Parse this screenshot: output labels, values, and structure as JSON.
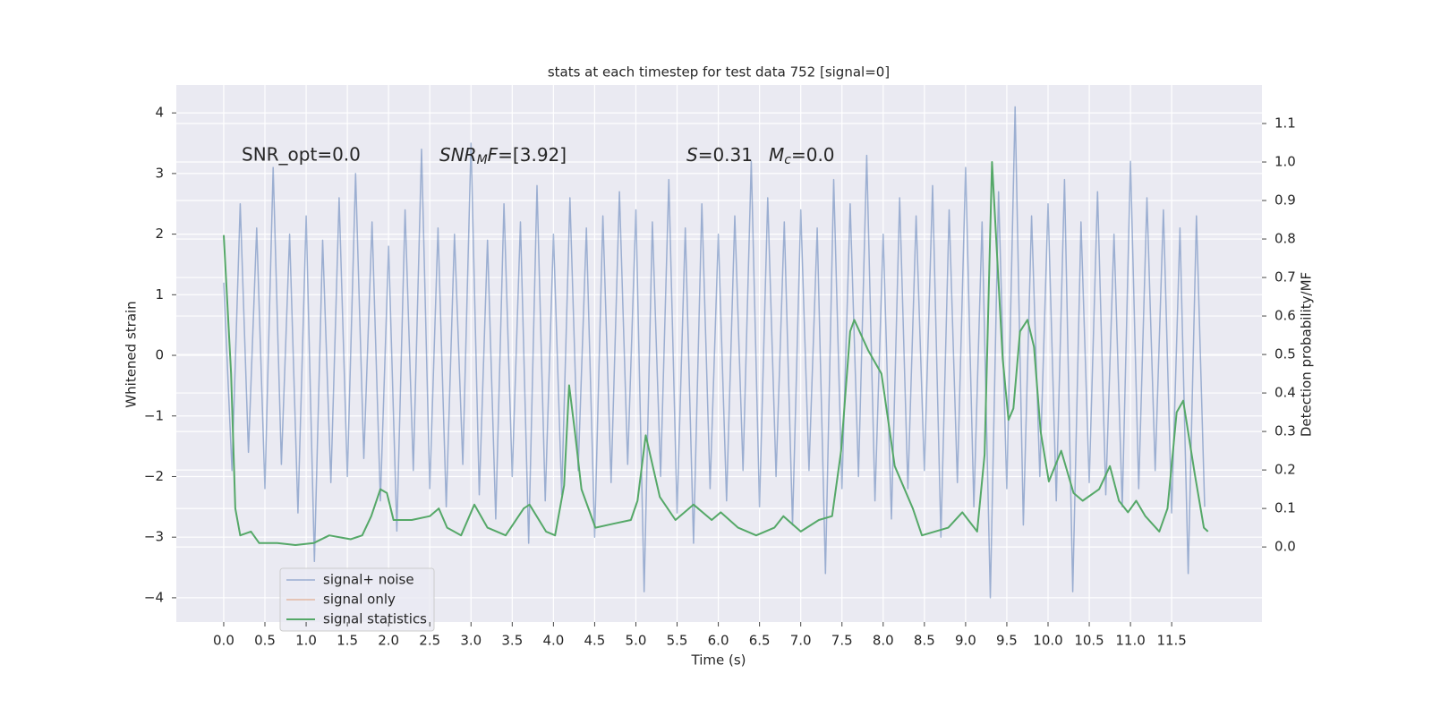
{
  "chart_data": {
    "type": "line",
    "title": "stats at each timestep for test data 752 [signal=0]",
    "xlabel": "Time (s)",
    "ylabel": "Whitened strain",
    "y2label": "Detection probability/MF",
    "annotations": {
      "snr_opt": "SNR_opt=0.0",
      "snr_mf": [
        "SNR",
        "M",
        "F",
        "=[3.92]"
      ],
      "s": [
        "S",
        "=0.31"
      ],
      "mc": [
        "M",
        "c",
        "=0.0"
      ]
    },
    "xlim": [
      -0.575,
      12.595
    ],
    "ylim": [
      -4.4,
      4.46
    ],
    "y2lim": [
      -0.195,
      1.2
    ],
    "xticks": [
      {
        "value": 0,
        "label": "0.0"
      },
      0.5,
      {
        "value": 1,
        "label": "1.0"
      },
      1.5,
      {
        "value": 2,
        "label": "2.0"
      },
      2.5,
      {
        "value": 3,
        "label": "3.0"
      },
      3.5,
      {
        "value": 4,
        "label": "4.0"
      },
      4.5,
      {
        "value": 5,
        "label": "5.0"
      },
      5.5,
      {
        "value": 6,
        "label": "6.0"
      },
      6.5,
      {
        "value": 7,
        "label": "7.0"
      },
      7.5,
      {
        "value": 8,
        "label": "8.0"
      },
      8.5,
      {
        "value": 9,
        "label": "9.0"
      },
      9.5,
      {
        "value": 10,
        "label": "10.0"
      },
      10.5,
      {
        "value": 11,
        "label": "11.0"
      },
      11.5
    ],
    "yticks": [
      {
        "value": -4,
        "label": "−4"
      },
      {
        "value": -3,
        "label": "−3"
      },
      {
        "value": -2,
        "label": "−2"
      },
      {
        "value": -1,
        "label": "−1"
      },
      0,
      1,
      2,
      3,
      4
    ],
    "y2ticks": [
      {
        "value": 0,
        "label": "0.0"
      },
      0.1,
      0.2,
      0.3,
      0.4,
      0.5,
      0.6,
      0.7,
      0.8,
      0.9,
      {
        "value": 1,
        "label": "1.0"
      },
      1.1
    ],
    "grid": true,
    "legend": "lower left",
    "series": [
      {
        "name": "signal+ noise",
        "color": "#4c72b0",
        "x": [
          0.0,
          0.1,
          0.2,
          0.3,
          0.4,
          0.5,
          0.6,
          0.7,
          0.8,
          0.9,
          1.0,
          1.1,
          1.2,
          1.3,
          1.4,
          1.5,
          1.6,
          1.7,
          1.8,
          1.9,
          2.0,
          2.1,
          2.2,
          2.3,
          2.4,
          2.5,
          2.6,
          2.7,
          2.8,
          2.9,
          3.0,
          3.1,
          3.2,
          3.3,
          3.4,
          3.5,
          3.6,
          3.7,
          3.8,
          3.9,
          4.0,
          4.1,
          4.2,
          4.3,
          4.4,
          4.5,
          4.6,
          4.7,
          4.8,
          4.9,
          5.0,
          5.1,
          5.2,
          5.3,
          5.4,
          5.5,
          5.6,
          5.7,
          5.8,
          5.9,
          6.0,
          6.1,
          6.2,
          6.3,
          6.4,
          6.5,
          6.6,
          6.7,
          6.8,
          6.9,
          7.0,
          7.1,
          7.2,
          7.3,
          7.4,
          7.5,
          7.6,
          7.7,
          7.8,
          7.9,
          8.0,
          8.1,
          8.2,
          8.3,
          8.4,
          8.5,
          8.6,
          8.7,
          8.8,
          8.9,
          9.0,
          9.1,
          9.2,
          9.3,
          9.4,
          9.5,
          9.6,
          9.7,
          9.8,
          9.9,
          10.0,
          10.1,
          10.2,
          10.3,
          10.4,
          10.5,
          10.6,
          10.7,
          10.8,
          10.9,
          11.0,
          11.1,
          11.2,
          11.3,
          11.4,
          11.5,
          11.6,
          11.7,
          11.8,
          11.9
        ],
        "values": [
          1.2,
          -1.9,
          2.5,
          -1.6,
          2.1,
          -2.2,
          3.1,
          -1.8,
          2.0,
          -2.6,
          2.3,
          -3.4,
          1.9,
          -2.1,
          2.6,
          -2.0,
          3.0,
          -1.7,
          2.2,
          -2.4,
          1.8,
          -2.9,
          2.4,
          -1.9,
          3.4,
          -2.2,
          2.1,
          -2.5,
          2.0,
          -1.8,
          3.5,
          -2.3,
          1.9,
          -2.7,
          2.5,
          -2.0,
          2.2,
          -3.1,
          2.8,
          -2.4,
          2.0,
          -2.3,
          2.6,
          -1.9,
          2.1,
          -3.0,
          2.3,
          -2.1,
          2.7,
          -1.8,
          2.4,
          -3.9,
          2.2,
          -2.0,
          2.9,
          -2.6,
          2.1,
          -3.1,
          2.5,
          -2.2,
          2.0,
          -2.4,
          2.3,
          -1.9,
          3.2,
          -2.5,
          2.6,
          -2.0,
          2.2,
          -2.8,
          2.4,
          -1.9,
          2.1,
          -3.6,
          2.9,
          -2.2,
          2.5,
          -2.0,
          3.3,
          -2.4,
          2.0,
          -2.7,
          2.6,
          -2.2,
          2.3,
          -1.9,
          2.8,
          -3.0,
          2.4,
          -2.1,
          3.1,
          -2.5,
          2.2,
          -4.0,
          2.7,
          -2.2,
          4.1,
          -2.8,
          2.3,
          -2.0,
          2.5,
          -2.4,
          2.9,
          -3.9,
          2.2,
          -2.1,
          2.7,
          -2.3,
          2.0,
          -2.5,
          3.2,
          -2.2,
          2.6,
          -1.9,
          2.4,
          -2.6,
          2.1,
          -3.6,
          2.3,
          -2.5
        ]
      },
      {
        "name": "signal only",
        "color": "#dd8452",
        "x": [],
        "values": []
      },
      {
        "name": "signal statistics",
        "color": "#55a868",
        "axis": "y2",
        "x": [
          0,
          0.09,
          0.14,
          0.2,
          0.33,
          0.43,
          0.65,
          0.87,
          1.09,
          1.28,
          1.54,
          1.68,
          1.79,
          1.9,
          1.98,
          2.06,
          2.28,
          2.5,
          2.61,
          2.71,
          2.88,
          3.04,
          3.2,
          3.42,
          3.64,
          3.71,
          3.91,
          4.02,
          4.13,
          4.19,
          4.26,
          4.34,
          4.51,
          4.72,
          4.94,
          5.02,
          5.12,
          5.29,
          5.48,
          5.7,
          5.92,
          6.03,
          6.24,
          6.46,
          6.68,
          6.79,
          7.0,
          7.22,
          7.38,
          7.49,
          7.6,
          7.65,
          7.82,
          7.98,
          8.14,
          8.36,
          8.47,
          8.79,
          8.96,
          9.14,
          9.23,
          9.32,
          9.45,
          9.52,
          9.58,
          9.66,
          9.75,
          9.83,
          9.91,
          10.01,
          10.16,
          10.31,
          10.42,
          10.62,
          10.75,
          10.86,
          10.97,
          11.07,
          11.18,
          11.35,
          11.45,
          11.56,
          11.64,
          11.78,
          11.89,
          11.94
        ],
        "values": [
          0.81,
          0.45,
          0.1,
          0.03,
          0.04,
          0.01,
          0.01,
          0.005,
          0.01,
          0.03,
          0.02,
          0.03,
          0.08,
          0.15,
          0.14,
          0.07,
          0.07,
          0.08,
          0.1,
          0.05,
          0.03,
          0.11,
          0.05,
          0.03,
          0.1,
          0.11,
          0.04,
          0.03,
          0.16,
          0.42,
          0.3,
          0.15,
          0.05,
          0.06,
          0.07,
          0.12,
          0.29,
          0.13,
          0.07,
          0.11,
          0.07,
          0.09,
          0.05,
          0.03,
          0.05,
          0.08,
          0.04,
          0.07,
          0.08,
          0.25,
          0.56,
          0.59,
          0.51,
          0.45,
          0.21,
          0.1,
          0.03,
          0.05,
          0.09,
          0.04,
          0.24,
          1.0,
          0.49,
          0.33,
          0.36,
          0.56,
          0.59,
          0.52,
          0.3,
          0.17,
          0.25,
          0.14,
          0.12,
          0.15,
          0.21,
          0.12,
          0.09,
          0.12,
          0.08,
          0.04,
          0.1,
          0.35,
          0.38,
          0.19,
          0.05,
          0.04
        ]
      }
    ]
  }
}
